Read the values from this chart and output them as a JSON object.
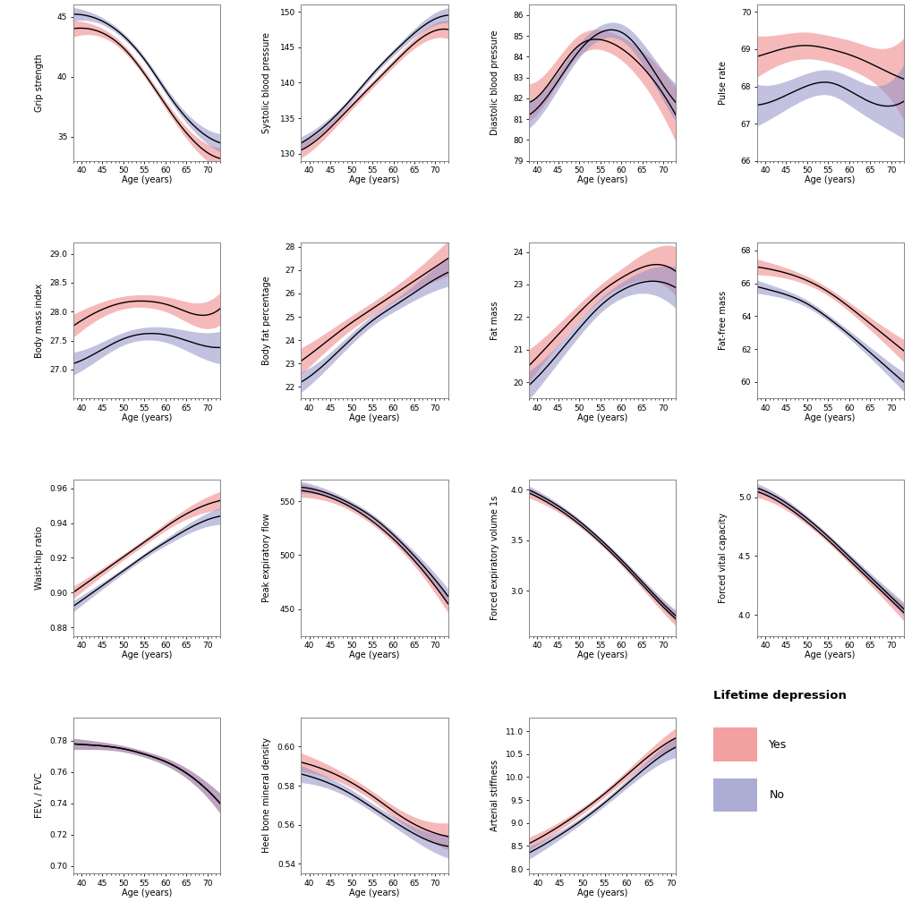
{
  "panels": [
    {
      "ylabel": "Grip strength",
      "ylim": [
        33,
        46
      ],
      "yticks": [
        35,
        40,
        45
      ],
      "xlim": [
        38,
        73
      ],
      "xticks": [
        40,
        45,
        50,
        55,
        60,
        65,
        70
      ],
      "red_params": [
        44.0,
        43.8,
        42.5,
        40.0,
        37.0,
        34.5,
        33.2
      ],
      "blue_params": [
        45.2,
        44.8,
        43.5,
        41.2,
        38.2,
        35.8,
        34.5
      ],
      "red_se": [
        0.35,
        0.2,
        0.15,
        0.14,
        0.18,
        0.28,
        0.45
      ],
      "blue_se": [
        0.28,
        0.16,
        0.12,
        0.12,
        0.16,
        0.24,
        0.38
      ]
    },
    {
      "ylabel": "Systolic blood pressure",
      "ylim": [
        129,
        151
      ],
      "yticks": [
        130,
        135,
        140,
        145,
        150
      ],
      "xlim": [
        38,
        73
      ],
      "xticks": [
        40,
        45,
        50,
        55,
        60,
        65,
        70
      ],
      "red_params": [
        130.5,
        133.0,
        136.5,
        140.0,
        143.5,
        146.5,
        147.5
      ],
      "blue_params": [
        131.5,
        134.0,
        137.5,
        141.5,
        145.0,
        148.0,
        149.5
      ],
      "red_se": [
        0.55,
        0.38,
        0.28,
        0.25,
        0.28,
        0.42,
        0.65
      ],
      "blue_se": [
        0.45,
        0.3,
        0.22,
        0.2,
        0.24,
        0.36,
        0.52
      ]
    },
    {
      "ylabel": "Diastolic blood pressure",
      "ylim": [
        79,
        86.5
      ],
      "yticks": [
        79,
        80,
        81,
        82,
        83,
        84,
        85,
        86
      ],
      "xlim": [
        38,
        73
      ],
      "xticks": [
        40,
        45,
        50,
        55,
        60,
        65,
        70
      ],
      "red_params": [
        81.8,
        83.0,
        84.5,
        84.8,
        84.2,
        83.0,
        81.2
      ],
      "blue_params": [
        81.2,
        82.5,
        84.2,
        85.2,
        85.0,
        83.5,
        81.8
      ],
      "red_se": [
        0.45,
        0.32,
        0.25,
        0.24,
        0.3,
        0.44,
        0.65
      ],
      "blue_se": [
        0.32,
        0.22,
        0.17,
        0.17,
        0.21,
        0.3,
        0.45
      ]
    },
    {
      "ylabel": "Pulse rate",
      "ylim": [
        66,
        70.2
      ],
      "yticks": [
        66,
        67,
        68,
        69,
        70
      ],
      "xlim": [
        38,
        73
      ],
      "xticks": [
        40,
        45,
        50,
        55,
        60,
        65,
        70
      ],
      "red_params": [
        68.8,
        69.0,
        69.1,
        69.0,
        68.8,
        68.5,
        68.2
      ],
      "blue_params": [
        67.5,
        67.7,
        68.0,
        68.1,
        67.8,
        67.5,
        67.6
      ],
      "red_se": [
        0.28,
        0.2,
        0.18,
        0.18,
        0.2,
        0.26,
        0.55
      ],
      "blue_se": [
        0.28,
        0.2,
        0.17,
        0.17,
        0.2,
        0.26,
        0.5
      ]
    },
    {
      "ylabel": "Body mass index",
      "ylim": [
        26.5,
        29.2
      ],
      "yticks": [
        27.0,
        27.5,
        28.0,
        28.5,
        29.0
      ],
      "xlim": [
        38,
        73
      ],
      "xticks": [
        40,
        45,
        50,
        55,
        60,
        65,
        70
      ],
      "red_params": [
        27.75,
        28.0,
        28.15,
        28.18,
        28.1,
        27.95,
        28.05
      ],
      "blue_params": [
        27.1,
        27.3,
        27.52,
        27.62,
        27.58,
        27.45,
        27.38
      ],
      "red_se": [
        0.1,
        0.07,
        0.055,
        0.055,
        0.07,
        0.1,
        0.14
      ],
      "blue_se": [
        0.1,
        0.07,
        0.055,
        0.055,
        0.07,
        0.1,
        0.14
      ]
    },
    {
      "ylabel": "Body fat percentage",
      "ylim": [
        21.5,
        28.2
      ],
      "yticks": [
        22,
        23,
        24,
        25,
        26,
        27,
        28
      ],
      "xlim": [
        38,
        73
      ],
      "xticks": [
        40,
        45,
        50,
        55,
        60,
        65,
        70
      ],
      "red_params": [
        23.1,
        23.9,
        24.7,
        25.4,
        26.1,
        26.8,
        27.5
      ],
      "blue_params": [
        22.2,
        23.0,
        24.0,
        24.9,
        25.6,
        26.3,
        26.9
      ],
      "red_se": [
        0.28,
        0.2,
        0.15,
        0.14,
        0.16,
        0.24,
        0.38
      ],
      "blue_se": [
        0.22,
        0.15,
        0.12,
        0.11,
        0.13,
        0.2,
        0.3
      ]
    },
    {
      "ylabel": "Fat mass",
      "ylim": [
        19.5,
        24.3
      ],
      "yticks": [
        20,
        21,
        22,
        23,
        24
      ],
      "xlim": [
        38,
        73
      ],
      "xticks": [
        40,
        45,
        50,
        55,
        60,
        65,
        70
      ],
      "red_params": [
        20.5,
        21.3,
        22.1,
        22.8,
        23.3,
        23.6,
        23.4
      ],
      "blue_params": [
        19.9,
        20.7,
        21.6,
        22.4,
        22.9,
        23.1,
        22.9
      ],
      "red_se": [
        0.25,
        0.17,
        0.13,
        0.12,
        0.15,
        0.24,
        0.38
      ],
      "blue_se": [
        0.22,
        0.15,
        0.12,
        0.11,
        0.13,
        0.2,
        0.32
      ]
    },
    {
      "ylabel": "Fat-free mass",
      "ylim": [
        59,
        68.5
      ],
      "yticks": [
        60,
        62,
        64,
        66,
        68
      ],
      "xlim": [
        38,
        73
      ],
      "xticks": [
        40,
        45,
        50,
        55,
        60,
        65,
        70
      ],
      "red_params": [
        67.0,
        66.7,
        66.2,
        65.4,
        64.3,
        63.1,
        61.9
      ],
      "blue_params": [
        65.8,
        65.4,
        64.8,
        63.8,
        62.6,
        61.3,
        60.0
      ],
      "red_se": [
        0.24,
        0.17,
        0.13,
        0.12,
        0.15,
        0.22,
        0.34
      ],
      "blue_se": [
        0.2,
        0.14,
        0.11,
        0.1,
        0.13,
        0.19,
        0.29
      ]
    },
    {
      "ylabel": "Waist-hip ratio",
      "ylim": [
        0.875,
        0.965
      ],
      "yticks": [
        0.88,
        0.9,
        0.92,
        0.94,
        0.96
      ],
      "xlim": [
        38,
        73
      ],
      "xticks": [
        40,
        45,
        50,
        55,
        60,
        65,
        70
      ],
      "red_params": [
        0.9,
        0.91,
        0.92,
        0.93,
        0.94,
        0.948,
        0.953
      ],
      "blue_params": [
        0.892,
        0.902,
        0.912,
        0.922,
        0.931,
        0.939,
        0.944
      ],
      "red_se": [
        0.0018,
        0.0012,
        0.0009,
        0.0009,
        0.0012,
        0.0018,
        0.0026
      ],
      "blue_se": [
        0.0016,
        0.0011,
        0.0008,
        0.0008,
        0.0011,
        0.0016,
        0.0024
      ]
    },
    {
      "ylabel": "Peak expiratory flow",
      "ylim": [
        425,
        570
      ],
      "yticks": [
        450,
        500,
        550
      ],
      "xlim": [
        38,
        73
      ],
      "xticks": [
        40,
        45,
        50,
        55,
        60,
        65,
        70
      ],
      "red_params": [
        560,
        555,
        545,
        530,
        510,
        485,
        455
      ],
      "blue_params": [
        563,
        558,
        548,
        534,
        514,
        490,
        462
      ],
      "red_se": [
        3.2,
        2.2,
        1.7,
        1.6,
        1.9,
        2.8,
        4.2
      ],
      "blue_se": [
        2.6,
        1.8,
        1.4,
        1.3,
        1.6,
        2.4,
        3.5
      ]
    },
    {
      "ylabel": "Forced expiratory volume 1s",
      "ylim": [
        2.55,
        4.1
      ],
      "yticks": [
        3.0,
        3.5,
        4.0
      ],
      "xlim": [
        38,
        73
      ],
      "xticks": [
        40,
        45,
        50,
        55,
        60,
        65,
        70
      ],
      "red_params": [
        3.97,
        3.84,
        3.67,
        3.46,
        3.22,
        2.96,
        2.72
      ],
      "blue_params": [
        4.0,
        3.87,
        3.7,
        3.49,
        3.25,
        2.99,
        2.75
      ],
      "red_se": [
        0.025,
        0.017,
        0.013,
        0.012,
        0.015,
        0.023,
        0.035
      ],
      "blue_se": [
        0.02,
        0.014,
        0.011,
        0.01,
        0.013,
        0.019,
        0.028
      ]
    },
    {
      "ylabel": "Forced vital capacity",
      "ylim": [
        3.82,
        5.15
      ],
      "yticks": [
        4.0,
        4.5,
        5.0
      ],
      "xlim": [
        38,
        73
      ],
      "xticks": [
        40,
        45,
        50,
        55,
        60,
        65,
        70
      ],
      "red_params": [
        5.05,
        4.95,
        4.8,
        4.62,
        4.42,
        4.22,
        4.02
      ],
      "blue_params": [
        5.08,
        4.98,
        4.83,
        4.65,
        4.45,
        4.25,
        4.05
      ],
      "red_se": [
        0.025,
        0.017,
        0.013,
        0.012,
        0.015,
        0.023,
        0.035
      ],
      "blue_se": [
        0.02,
        0.014,
        0.011,
        0.01,
        0.013,
        0.019,
        0.028
      ]
    },
    {
      "ylabel": "FEV₁ / FVC",
      "ylim": [
        0.695,
        0.795
      ],
      "yticks": [
        0.7,
        0.72,
        0.74,
        0.76,
        0.78
      ],
      "xlim": [
        38,
        73
      ],
      "xticks": [
        40,
        45,
        50,
        55,
        60,
        65,
        70
      ],
      "red_params": [
        0.778,
        0.777,
        0.775,
        0.771,
        0.765,
        0.755,
        0.74
      ],
      "blue_params": [
        0.778,
        0.777,
        0.775,
        0.771,
        0.765,
        0.755,
        0.74
      ],
      "red_se": [
        0.0018,
        0.0013,
        0.001,
        0.001,
        0.0013,
        0.0019,
        0.0032
      ],
      "blue_se": [
        0.0018,
        0.0013,
        0.001,
        0.001,
        0.0013,
        0.0019,
        0.0032
      ]
    },
    {
      "ylabel": "Heel bone mineral density",
      "ylim": [
        0.535,
        0.615
      ],
      "yticks": [
        0.54,
        0.56,
        0.58,
        0.6
      ],
      "xlim": [
        38,
        73
      ],
      "xticks": [
        40,
        45,
        50,
        55,
        60,
        65,
        70
      ],
      "red_params": [
        0.592,
        0.588,
        0.582,
        0.574,
        0.565,
        0.558,
        0.554
      ],
      "blue_params": [
        0.586,
        0.582,
        0.576,
        0.568,
        0.56,
        0.553,
        0.549
      ],
      "red_se": [
        0.0024,
        0.0017,
        0.0013,
        0.0012,
        0.0015,
        0.0022,
        0.0035
      ],
      "blue_se": [
        0.0022,
        0.0015,
        0.0012,
        0.0011,
        0.0014,
        0.002,
        0.003
      ]
    },
    {
      "ylabel": "Arterial stiffness",
      "ylim": [
        7.9,
        11.3
      ],
      "yticks": [
        8.0,
        8.5,
        9.0,
        9.5,
        10.0,
        10.5,
        11.0
      ],
      "xlim": [
        38,
        71
      ],
      "xticks": [
        40,
        45,
        50,
        55,
        60,
        65,
        70
      ],
      "red_params": [
        8.55,
        8.85,
        9.2,
        9.6,
        10.05,
        10.5,
        10.85
      ],
      "blue_params": [
        8.35,
        8.65,
        9.0,
        9.4,
        9.85,
        10.3,
        10.65
      ],
      "red_se": [
        0.07,
        0.05,
        0.038,
        0.036,
        0.046,
        0.068,
        0.11
      ],
      "blue_se": [
        0.07,
        0.05,
        0.038,
        0.036,
        0.046,
        0.068,
        0.11
      ]
    }
  ],
  "red_color": "#F08080",
  "blue_color": "#9090C8",
  "xlabel": "Age (years)",
  "background": "#FFFFFF",
  "legend_title": "Lifetime depression",
  "legend_yes": "Yes",
  "legend_no": "No"
}
